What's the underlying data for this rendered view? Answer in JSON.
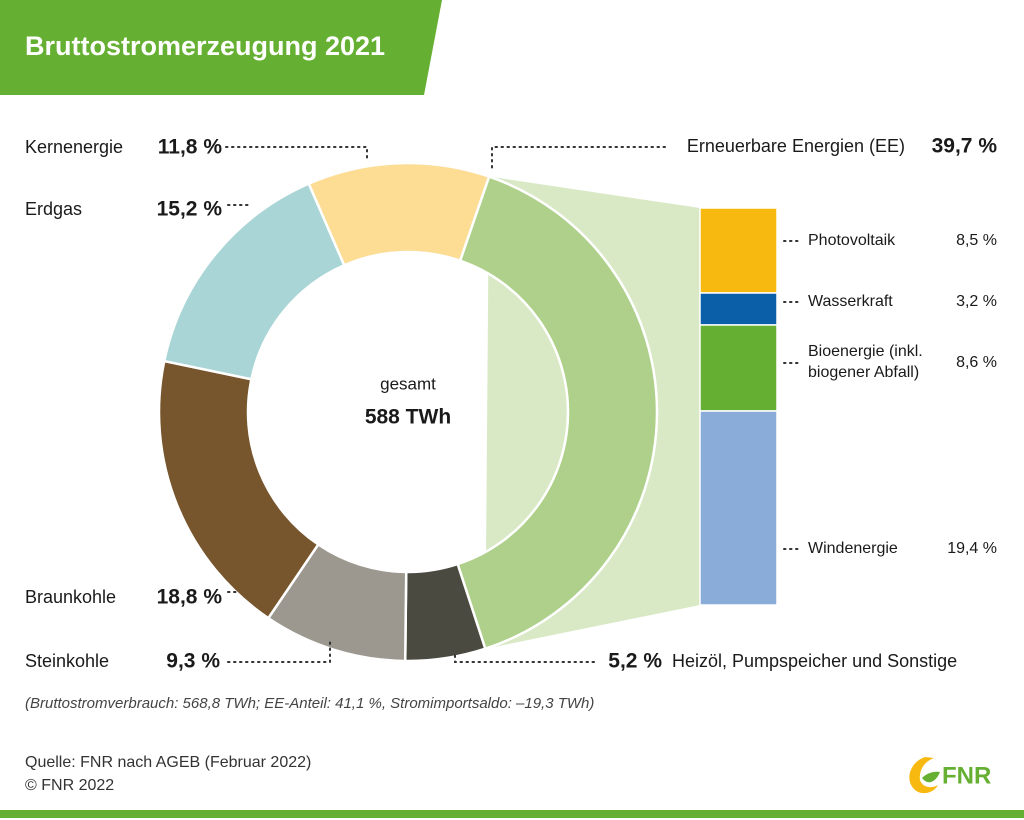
{
  "chart_data": [
    {
      "type": "pie",
      "title": "Bruttostromerzeugung 2021",
      "center_label": "gesamt",
      "total_label": "588 TWh",
      "categories": [
        "Erneuerbare Energien (EE)",
        "Heizöl, Pumpspeicher und Sonstige",
        "Steinkohle",
        "Braunkohle",
        "Erdgas",
        "Kernenergie"
      ],
      "values": [
        39.7,
        5.2,
        9.3,
        18.8,
        15.2,
        11.8
      ],
      "value_labels": [
        "39,7 %",
        "5,2 %",
        "9,3 %",
        "18,8 %",
        "15,2 %",
        "11,8 %"
      ],
      "colors": [
        "#aed08a",
        "#4a4a40",
        "#9c9890",
        "#77552d",
        "#a9d5d6",
        "#fddc94"
      ]
    },
    {
      "type": "bar",
      "stacked": true,
      "categories": [
        "Photovoltaik",
        "Wasserkraft",
        "Bioenergie (inkl. biogener Abfall)",
        "Windenergie"
      ],
      "values": [
        8.5,
        3.2,
        8.6,
        19.4
      ],
      "value_labels": [
        "8,5 %",
        "3,2 %",
        "8,6 %",
        "19,4 %"
      ],
      "colors": [
        "#f7b90f",
        "#0a5fa8",
        "#65b032",
        "#8aacd9"
      ]
    }
  ],
  "note": "(Bruttostromverbrauch: 568,8 TWh; EE-Anteil: 41,1 %, Stromimportsaldo: –19,3 TWh)",
  "source": "Quelle: FNR nach AGEB (Februar 2022)",
  "copyright": "© FNR 2022",
  "logo": "FNR"
}
